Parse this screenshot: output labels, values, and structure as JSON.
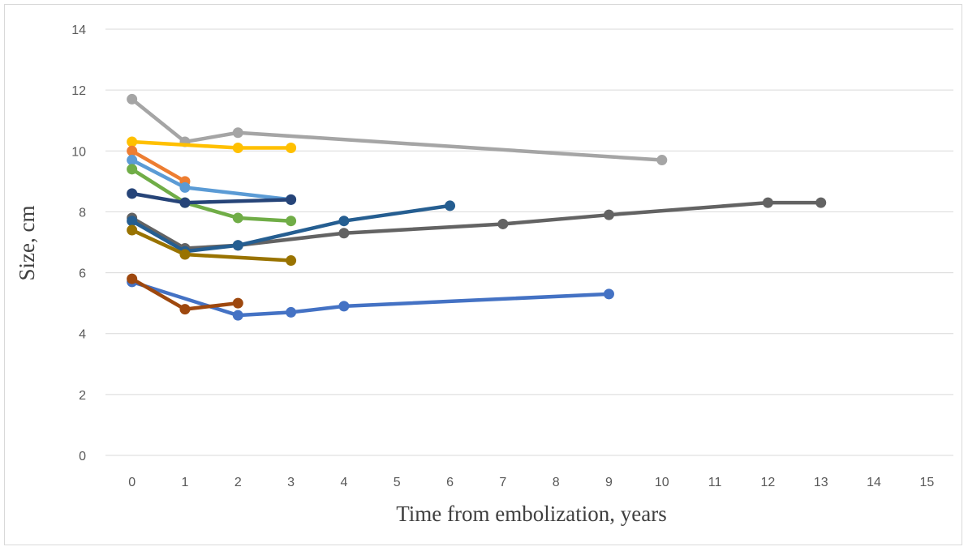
{
  "chart_data": {
    "type": "line",
    "title": "",
    "xlabel": "Time from embolization, years",
    "ylabel": "Size, cm",
    "xlim": [
      0,
      15
    ],
    "ylim": [
      0,
      14
    ],
    "x_ticks": [
      "0",
      "1",
      "2",
      "3",
      "4",
      "5",
      "6",
      "7",
      "8",
      "9",
      "10",
      "11",
      "12",
      "13",
      "14",
      "15"
    ],
    "y_ticks": [
      "0",
      "2",
      "4",
      "6",
      "8",
      "10",
      "12",
      "14"
    ],
    "grid": "horizontal",
    "legend": "none",
    "series": [
      {
        "color": "#A5A5A5",
        "points": [
          [
            0,
            11.7
          ],
          [
            1,
            10.3
          ],
          [
            2,
            10.6
          ],
          [
            10,
            9.7
          ]
        ]
      },
      {
        "color": "#FFC000",
        "points": [
          [
            0,
            10.3
          ],
          [
            2,
            10.1
          ],
          [
            3,
            10.1
          ]
        ]
      },
      {
        "color": "#ED7D31",
        "points": [
          [
            0,
            10.0
          ],
          [
            1,
            9.0
          ]
        ]
      },
      {
        "color": "#5B9BD5",
        "points": [
          [
            0,
            9.7
          ],
          [
            1,
            8.8
          ],
          [
            3,
            8.4
          ]
        ]
      },
      {
        "color": "#70AD47",
        "points": [
          [
            0,
            9.4
          ],
          [
            1,
            8.3
          ],
          [
            2,
            7.8
          ],
          [
            3,
            7.7
          ]
        ]
      },
      {
        "color": "#264478",
        "points": [
          [
            0,
            8.6
          ],
          [
            1,
            8.3
          ],
          [
            3,
            8.4
          ]
        ]
      },
      {
        "color": "#636363",
        "points": [
          [
            0,
            7.8
          ],
          [
            1,
            6.8
          ],
          [
            2,
            6.9
          ],
          [
            4,
            7.3
          ],
          [
            7,
            7.6
          ],
          [
            9,
            7.9
          ],
          [
            12,
            8.3
          ],
          [
            13,
            8.3
          ]
        ]
      },
      {
        "color": "#255E91",
        "points": [
          [
            0,
            7.7
          ],
          [
            1,
            6.7
          ],
          [
            2,
            6.9
          ],
          [
            4,
            7.7
          ],
          [
            6,
            8.2
          ]
        ]
      },
      {
        "color": "#997300",
        "points": [
          [
            0,
            7.4
          ],
          [
            1,
            6.6
          ],
          [
            3,
            6.4
          ]
        ]
      },
      {
        "color": "#4472C4",
        "points": [
          [
            0,
            5.7
          ],
          [
            2,
            4.6
          ],
          [
            3,
            4.7
          ],
          [
            4,
            4.9
          ],
          [
            9,
            5.3
          ]
        ]
      },
      {
        "color": "#9E480E",
        "points": [
          [
            0,
            5.8
          ],
          [
            1,
            4.8
          ],
          [
            2,
            5.0
          ]
        ]
      }
    ]
  }
}
